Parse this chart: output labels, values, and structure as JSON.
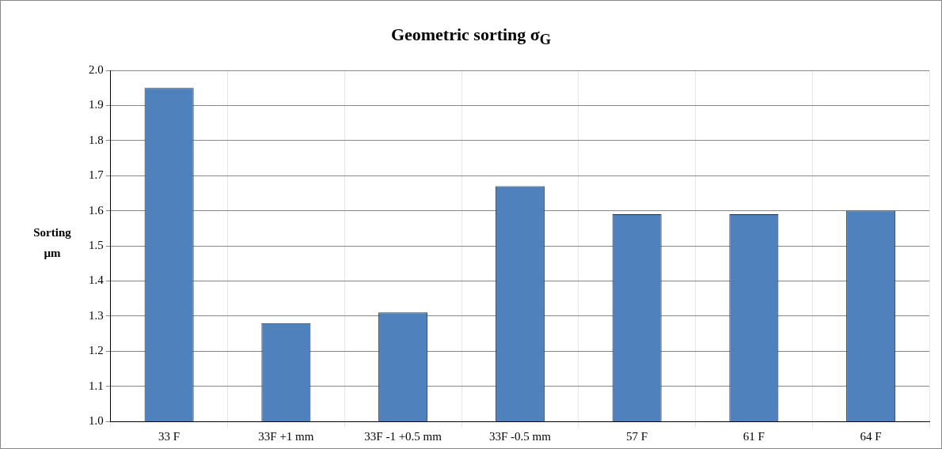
{
  "chart_data": {
    "type": "bar",
    "title": "Geometric sorting σ$_{G}$",
    "ylabel": "Sorting µm",
    "categories": [
      "33 F",
      "33F +1 mm",
      "33F -1 +0.5 mm",
      "33F -0.5 mm",
      "57 F",
      "61 F",
      "64 F"
    ],
    "values": [
      1.95,
      1.28,
      1.31,
      1.67,
      1.59,
      1.59,
      1.6
    ],
    "color": "#4f81bd",
    "ylim": [
      1.0,
      2.0
    ],
    "yticks": [
      {
        "value": 1.0,
        "label": "1.0"
      },
      {
        "value": 1.1,
        "label": "1.1"
      },
      {
        "value": 1.2,
        "label": "1.2"
      },
      {
        "value": 1.3,
        "label": "1.3"
      },
      {
        "value": 1.4,
        "label": "1.4"
      },
      {
        "value": 1.5,
        "label": "1.5"
      },
      {
        "value": 1.6,
        "label": "1.6"
      },
      {
        "value": 1.7,
        "label": "1.7"
      },
      {
        "value": 1.8,
        "label": "1.8"
      },
      {
        "value": 1.9,
        "label": "1.9"
      },
      {
        "value": 2.0,
        "label": "2.0"
      }
    ],
    "grid": true
  }
}
